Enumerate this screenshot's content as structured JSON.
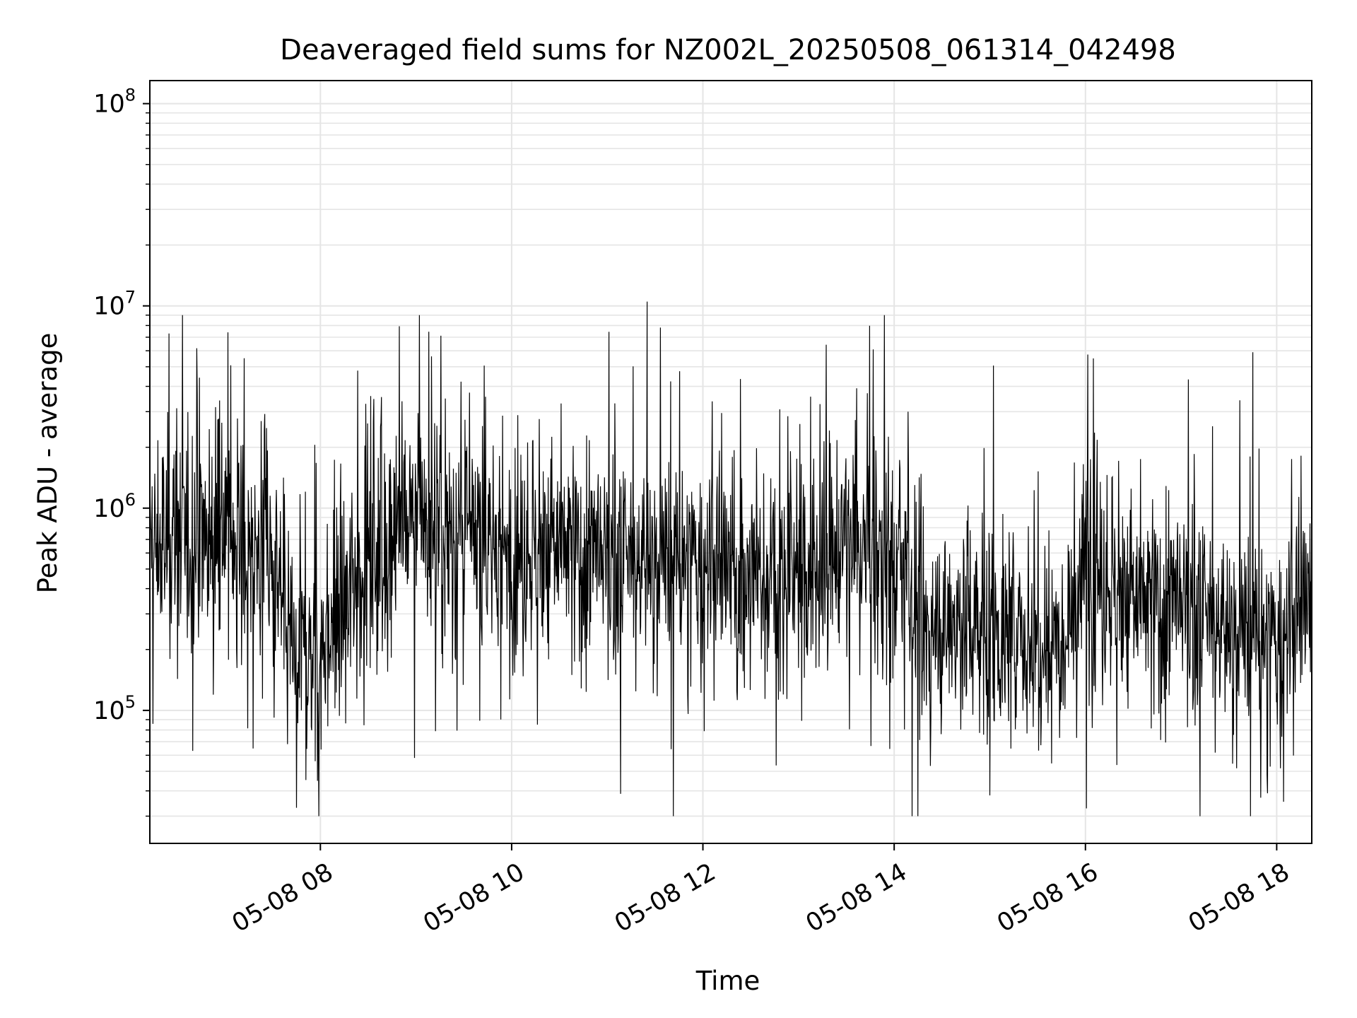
{
  "chart_data": {
    "type": "line",
    "title": "Deaveraged field sums for NZ002L_20250508_061314_042498",
    "xlabel": "Time",
    "ylabel": "Peak ADU - average",
    "yscale": "log",
    "ylim": [
      22000,
      130000000
    ],
    "xlim": [
      "2025-05-08 06:13",
      "2025-05-08 18:22"
    ],
    "grid": true,
    "line_color": "#000000",
    "grid_color": "#e5e5e5",
    "x_ticks": [
      "05-08 08",
      "05-08 10",
      "05-08 12",
      "05-08 14",
      "05-08 16",
      "05-08 18"
    ],
    "x_tick_times": [
      "2025-05-08 08:00",
      "2025-05-08 10:00",
      "2025-05-08 12:00",
      "2025-05-08 14:00",
      "2025-05-08 16:00",
      "2025-05-08 18:00"
    ],
    "y_ticks": [
      {
        "base": "10",
        "exp": "5",
        "value": 100000
      },
      {
        "base": "10",
        "exp": "6",
        "value": 1000000
      },
      {
        "base": "10",
        "exp": "7",
        "value": 10000000
      },
      {
        "base": "10",
        "exp": "8",
        "value": 100000000
      }
    ],
    "series": [
      {
        "values_note_sampling": "hourly-segment levels (approximate), dense noisy trace",
        "x": [
          "2025-05-08 06:13",
          "2025-05-08 06:30",
          "2025-05-08 07:00",
          "2025-05-08 07:30",
          "2025-05-08 07:45",
          "2025-05-08 08:00",
          "2025-05-08 08:30",
          "2025-05-08 09:00",
          "2025-05-08 09:30",
          "2025-05-08 10:00",
          "2025-05-08 10:30",
          "2025-05-08 11:00",
          "2025-05-08 11:30",
          "2025-05-08 12:00",
          "2025-05-08 12:30",
          "2025-05-08 13:00",
          "2025-05-08 13:30",
          "2025-05-08 14:00",
          "2025-05-08 14:20",
          "2025-05-08 14:45",
          "2025-05-08 15:15",
          "2025-05-08 15:45",
          "2025-05-08 16:00",
          "2025-05-08 16:30",
          "2025-05-08 17:00",
          "2025-05-08 17:30",
          "2025-05-08 18:00",
          "2025-05-08 18:22"
        ],
        "values": [
          600000,
          700000,
          800000,
          500000,
          180000,
          200000,
          600000,
          900000,
          700000,
          600000,
          650000,
          500000,
          550000,
          500000,
          450000,
          450000,
          650000,
          550000,
          250000,
          280000,
          220000,
          250000,
          500000,
          350000,
          300000,
          250000,
          200000,
          350000
        ]
      }
    ],
    "notable_peaks": [
      {
        "x": "2025-05-08 11:25",
        "y": 10500000
      },
      {
        "x": "2025-05-08 16:05",
        "y": 5500000
      },
      {
        "x": "2025-05-08 17:45",
        "y": 5900000
      },
      {
        "x": "2025-05-08 06:25",
        "y": 7300000
      },
      {
        "x": "2025-05-08 07:02",
        "y": 7400000
      }
    ],
    "notable_troughs": [
      {
        "x": "2025-05-08 07:45",
        "y": 33000
      },
      {
        "x": "2025-05-08 15:00",
        "y": 38000
      },
      {
        "x": "2025-05-08 17:50",
        "y": 37000
      }
    ]
  }
}
